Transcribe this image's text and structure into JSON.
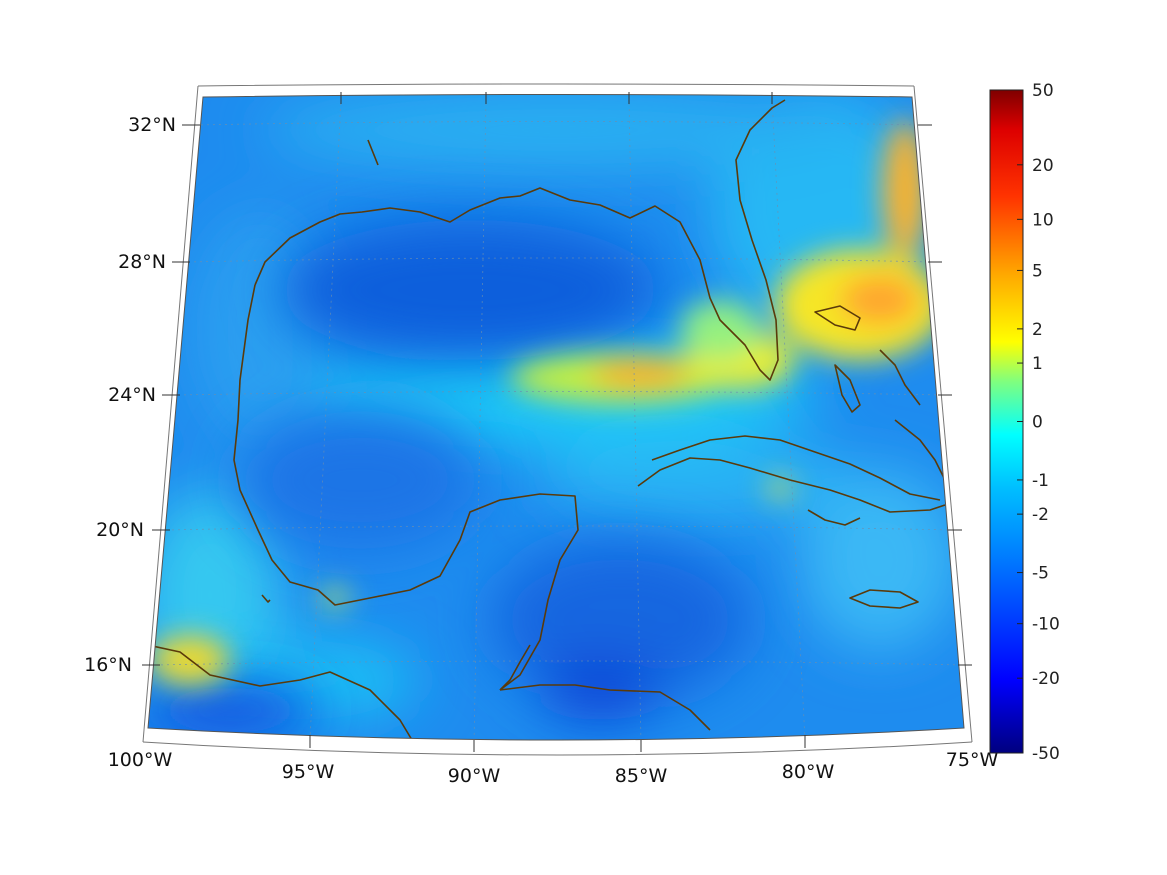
{
  "map": {
    "region": "Gulf of Mexico and Caribbean",
    "projection": "conic",
    "lon_range": [
      -100,
      -75
    ],
    "lat_range": [
      14,
      33
    ],
    "longitude_labels": [
      "100°W",
      "95°W",
      "90°W",
      "85°W",
      "80°W",
      "75°W"
    ],
    "latitude_labels": [
      "32°N",
      "28°N",
      "24°N",
      "20°N",
      "16°N"
    ],
    "coastline_color": "#5a3a0a",
    "graticule": true
  },
  "colorbar": {
    "scale": "symmetric-log",
    "ticks": [
      "50",
      "20",
      "10",
      "5",
      "2",
      "1",
      "0",
      "-1",
      "-2",
      "-5",
      "-10",
      "-20",
      "-50"
    ],
    "min": -50,
    "max": 50,
    "colormap": "jet"
  }
}
